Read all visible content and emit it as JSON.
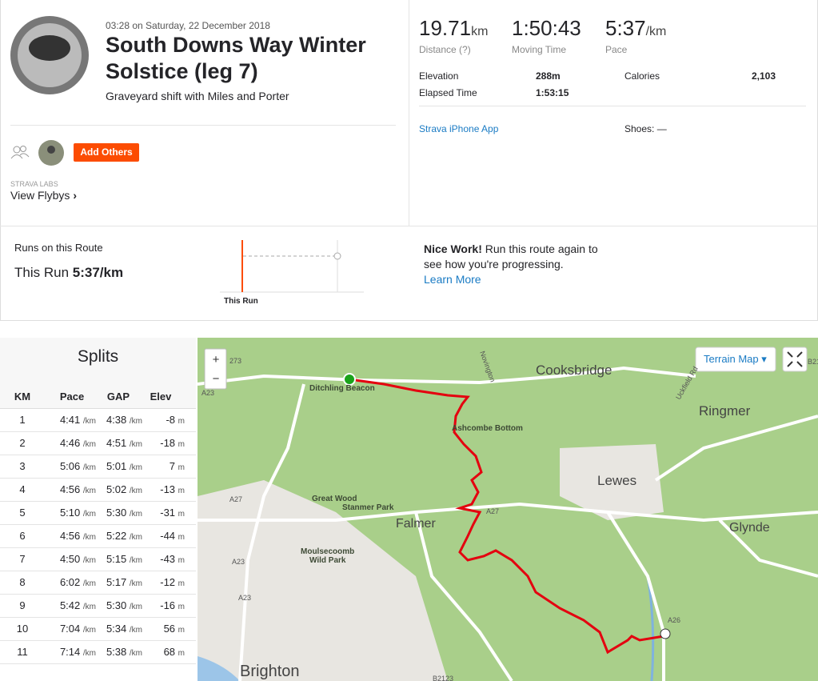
{
  "activity": {
    "datetime": "03:28 on Saturday, 22 December 2018",
    "title": "South Downs Way Winter Solstice (leg 7)",
    "description": "Graveyard shift with Miles and Porter",
    "add_others": "Add Others",
    "labs_label": "STRAVA LABS",
    "flybys": "View Flybys"
  },
  "stats": {
    "primary": [
      {
        "value": "19.71",
        "unit": "km",
        "label": "Distance (?)"
      },
      {
        "value": "1:50:43",
        "label": "Moving Time"
      },
      {
        "value": "5:37",
        "unit": "/km",
        "label": "Pace"
      }
    ],
    "secondary": [
      [
        "Elevation",
        "288m",
        "Calories",
        "2,103"
      ],
      [
        "Elapsed Time",
        "1:53:15"
      ]
    ],
    "device": "Strava iPhone App",
    "shoes": "Shoes: —"
  },
  "route": {
    "heading": "Runs on this Route",
    "this_run_label": "This Run",
    "this_run_pace": "5:37/km",
    "chart_label": "This Run",
    "nice_bold": "Nice Work!",
    "nice_text": "Run this route again to see how you're progressing.",
    "learn_more": "Learn More"
  },
  "splits": {
    "title": "Splits",
    "headers": [
      "KM",
      "Pace",
      "GAP",
      "Elev"
    ],
    "units": {
      "pace": "/km",
      "elev": "m"
    },
    "rows": [
      [
        1,
        "4:41",
        "4:38",
        -8
      ],
      [
        2,
        "4:46",
        "4:51",
        -18
      ],
      [
        3,
        "5:06",
        "5:01",
        7
      ],
      [
        4,
        "4:56",
        "5:02",
        -13
      ],
      [
        5,
        "5:10",
        "5:30",
        -31
      ],
      [
        6,
        "4:56",
        "5:22",
        -44
      ],
      [
        7,
        "4:50",
        "5:15",
        -43
      ],
      [
        8,
        "6:02",
        "5:17",
        -12
      ],
      [
        9,
        "5:42",
        "5:30",
        -16
      ],
      [
        10,
        "7:04",
        "5:34",
        56
      ],
      [
        11,
        "7:14",
        "5:38",
        68
      ]
    ]
  },
  "map": {
    "map_type": "Terrain Map ▾",
    "zoom_in": "+",
    "zoom_out": "−",
    "places": [
      "Cooksbridge",
      "Ringmer",
      "Lewes",
      "Glynde",
      "Falmer",
      "Brighton"
    ],
    "areas": [
      "Ditchling Beacon",
      "Ashcombe Bottom",
      "Great Wood",
      "Stanmer Park",
      "Moulsecoomb",
      "Wild Park"
    ],
    "roads": [
      "273",
      "A23",
      "A27",
      "A27",
      "A23",
      "A23",
      "A26",
      "B2123",
      "B21",
      "Novington",
      "Uckfield Rd"
    ]
  }
}
